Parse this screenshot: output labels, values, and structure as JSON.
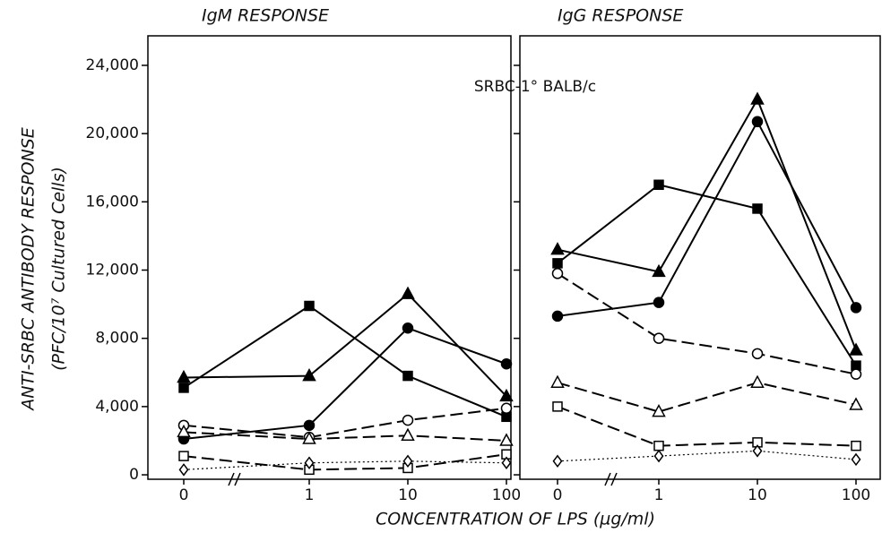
{
  "figure": {
    "y_label": "ANTI-SRBC ANTIBODY RESPONSE",
    "y_sublabel": "(PFC/10⁷ Cultured Cells)",
    "x_label": "CONCENTRATION OF LPS  (µg/ml)",
    "annotation": "SRBC-1° BALB/c"
  },
  "chart_data": [
    {
      "type": "line",
      "title": "IgM RESPONSE",
      "categories": [
        "0",
        "1",
        "10",
        "100"
      ],
      "ylim": [
        -260,
        25730
      ],
      "yticks": [
        0,
        {
          "value": 4000,
          "label": "4,000"
        },
        {
          "value": 8000,
          "label": "8,000"
        },
        {
          "value": 12000,
          "label": "12,000"
        },
        {
          "value": 16000,
          "label": "16,000"
        },
        {
          "value": 20000,
          "label": "20,000"
        },
        {
          "value": 24000,
          "label": "24,000"
        }
      ],
      "series": [
        {
          "color": "#000",
          "marker": "square",
          "fill": "filled",
          "line": "solid",
          "values": [
            5100,
            9900,
            5800,
            3400
          ]
        },
        {
          "color": "#000",
          "marker": "triangle",
          "fill": "filled",
          "line": "solid",
          "values": [
            5700,
            5800,
            10600,
            4600
          ]
        },
        {
          "color": "#000",
          "marker": "circle",
          "fill": "filled",
          "line": "solid",
          "values": [
            2100,
            2900,
            8600,
            6500
          ]
        },
        {
          "color": "#000",
          "marker": "circle",
          "fill": "open",
          "line": "dashed",
          "values": [
            2900,
            2200,
            3200,
            3900
          ]
        },
        {
          "color": "#000",
          "marker": "triangle",
          "fill": "open",
          "line": "dashed",
          "values": [
            2500,
            2100,
            2300,
            2000
          ]
        },
        {
          "color": "#000",
          "marker": "square",
          "fill": "open",
          "line": "dashed",
          "values": [
            1100,
            300,
            400,
            1200
          ]
        },
        {
          "color": "#000",
          "marker": "diamond",
          "fill": "open",
          "line": "dotted",
          "values": [
            300,
            700,
            800,
            700
          ]
        }
      ]
    },
    {
      "type": "line",
      "title": "IgG RESPONSE",
      "categories": [
        "0",
        "1",
        "10",
        "100"
      ],
      "ylim": [
        -260,
        25730
      ],
      "yticks": [
        0,
        4000,
        8000,
        12000,
        16000,
        20000,
        24000
      ],
      "series": [
        {
          "color": "#000",
          "marker": "square",
          "fill": "filled",
          "line": "solid",
          "values": [
            12400,
            17000,
            15600,
            6400
          ]
        },
        {
          "color": "#000",
          "marker": "triangle",
          "fill": "filled",
          "line": "solid",
          "values": [
            13200,
            11900,
            22000,
            7300
          ]
        },
        {
          "color": "#000",
          "marker": "circle",
          "fill": "filled",
          "line": "solid",
          "values": [
            9300,
            10100,
            20700,
            9800
          ]
        },
        {
          "color": "#000",
          "marker": "circle",
          "fill": "open",
          "line": "dashed",
          "values": [
            11800,
            8000,
            7100,
            5900
          ]
        },
        {
          "color": "#000",
          "marker": "triangle",
          "fill": "open",
          "line": "dashed",
          "values": [
            5400,
            3700,
            5400,
            4100
          ]
        },
        {
          "color": "#000",
          "marker": "square",
          "fill": "open",
          "line": "dashed",
          "values": [
            4000,
            1700,
            1900,
            1700
          ]
        },
        {
          "color": "#000",
          "marker": "diamond",
          "fill": "open",
          "line": "dotted",
          "values": [
            800,
            1100,
            1400,
            900
          ]
        }
      ]
    }
  ]
}
